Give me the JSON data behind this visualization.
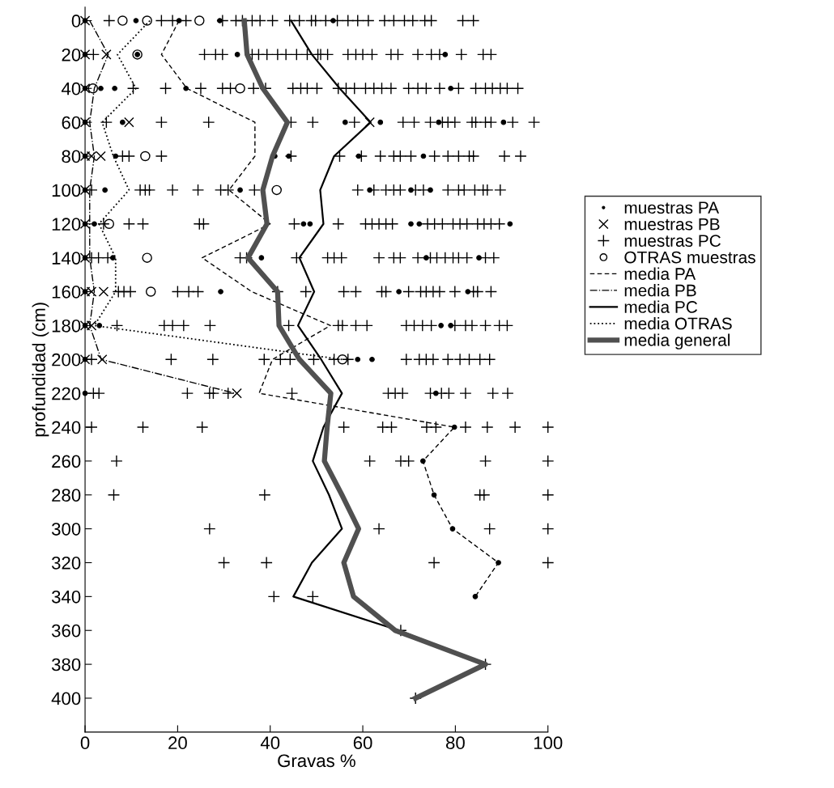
{
  "chart_data": {
    "type": "scatter",
    "xlabel": "Gravas %",
    "ylabel": "profundidad (cm)",
    "xlim": [
      0,
      100
    ],
    "ylim": [
      420,
      -8
    ],
    "xticks": [
      0,
      20,
      40,
      60,
      80,
      100
    ],
    "yticks": [
      0,
      20,
      40,
      60,
      80,
      100,
      120,
      140,
      160,
      180,
      200,
      220,
      240,
      260,
      280,
      300,
      320,
      340,
      360,
      380,
      400
    ],
    "grid": false,
    "legend": "right",
    "series": [
      {
        "name": "muestras PA",
        "marker": "dot",
        "color": "#000000",
        "x": [
          0,
          11,
          20.3,
          29.1,
          53.6,
          0,
          11.3,
          32.9,
          77.8,
          0,
          3.4,
          6.4,
          21.8,
          79,
          0,
          8.1,
          56.2,
          63.8,
          76.4,
          90.4,
          0,
          6.6,
          41,
          44,
          59.1,
          73.1,
          0,
          4.3,
          33.5,
          61.5,
          70.4,
          74.6,
          0,
          2,
          47.2,
          48.6,
          70.4,
          72.2,
          91.8,
          0,
          6,
          38.1,
          73.7,
          85.1,
          0,
          29.3,
          67.8,
          82.7,
          0,
          3.1,
          76.9,
          79,
          0,
          58.9,
          62,
          0,
          75.8,
          79.8,
          73,
          75.4,
          79.4,
          89.3,
          84.3
        ],
        "values": [
          0,
          0,
          0,
          0,
          0,
          20,
          20,
          20,
          20,
          40,
          40,
          40,
          40,
          40,
          60,
          60,
          60,
          60,
          60,
          60,
          80,
          80,
          80,
          80,
          80,
          80,
          100,
          100,
          100,
          100,
          100,
          100,
          120,
          120,
          120,
          120,
          120,
          120,
          120,
          140,
          140,
          140,
          140,
          140,
          160,
          160,
          160,
          160,
          180,
          180,
          180,
          180,
          200,
          200,
          200,
          220,
          220,
          240,
          260,
          280,
          300,
          320,
          340
        ]
      },
      {
        "name": "muestras PB",
        "marker": "x",
        "color": "#000000",
        "x": [
          0,
          0,
          4.6,
          0,
          0,
          9.5,
          61.5,
          0,
          1.4,
          3.4,
          0,
          0,
          0,
          0,
          1.4,
          4,
          0,
          1.4,
          0,
          3.7,
          32.8
        ],
        "values": [
          0,
          20,
          20,
          40,
          60,
          60,
          60,
          80,
          80,
          80,
          100,
          120,
          140,
          160,
          160,
          160,
          180,
          180,
          200,
          200,
          220
        ]
      },
      {
        "name": "muestras PC",
        "marker": "plus",
        "color": "#000000",
        "x": [
          5.2,
          16.5,
          18.9,
          21.8,
          29.7,
          32.6,
          34,
          36.1,
          37.8,
          40.5,
          44.2,
          46.3,
          48.9,
          49.8,
          52,
          54.5,
          56.8,
          58.9,
          61.2,
          64.7,
          66.7,
          69,
          70.8,
          73.4,
          74.8,
          81.6,
          83.9,
          1.8,
          25.8,
          28.2,
          29.7,
          36.1,
          37.5,
          39.3,
          41.6,
          43.4,
          45.7,
          48,
          50.3,
          50.9,
          52.4,
          56.8,
          58.5,
          60,
          62,
          66.1,
          67.6,
          71.9,
          74.8,
          76.6,
          81.3,
          86,
          87.7,
          10.4,
          17.4,
          25,
          29.7,
          31.4,
          36.4,
          39,
          44.9,
          46.6,
          48,
          50.1,
          54.7,
          56.4,
          58.2,
          60.6,
          62.4,
          64.1,
          66.1,
          69.9,
          71.9,
          73.7,
          76.6,
          80.7,
          84.4,
          86.5,
          88,
          89.7,
          91.2,
          93.5,
          4.6,
          16.5,
          26.7,
          44.5,
          49.2,
          58.2,
          68.7,
          71.1,
          74.6,
          77.2,
          78.4,
          79.9,
          83.6,
          84.4,
          86.5,
          87.7,
          92.4,
          97,
          8.1,
          9.5,
          16.5,
          44.5,
          55,
          59.7,
          63.8,
          66.7,
          68.1,
          70.4,
          75.5,
          78.4,
          80.7,
          83,
          83.9,
          90.6,
          94.1,
          1.4,
          11.9,
          13,
          13.9,
          18.9,
          24.4,
          29.3,
          30.9,
          36.6,
          58.9,
          62.4,
          65,
          66.7,
          68.1,
          71.4,
          73.1,
          78.4,
          80.7,
          81.9,
          84.2,
          86,
          86.9,
          89.7,
          4,
          9.5,
          12.5,
          24.7,
          25.6,
          45.2,
          54.7,
          60.6,
          62,
          63.5,
          65,
          66.4,
          74,
          75.5,
          77.2,
          79.5,
          81,
          82.5,
          84.8,
          86.2,
          87.7,
          89.5,
          1.4,
          2.9,
          4.9,
          33.5,
          34.9,
          45.7,
          52.4,
          53.8,
          55.4,
          63.5,
          66.7,
          68.1,
          71.9,
          74.6,
          76,
          77.8,
          79.5,
          80.7,
          82.5,
          86.5,
          88.3,
          7.2,
          8.4,
          9.8,
          20,
          22.4,
          24.4,
          41.6,
          47.7,
          55.9,
          58.5,
          64.1,
          65,
          69.9,
          72.5,
          73.7,
          75.2,
          76.6,
          79.9,
          83.9,
          84.8,
          87.7,
          6.9,
          17.1,
          18.9,
          21.3,
          27,
          44,
          54.7,
          55.6,
          58.5,
          60.9,
          69.4,
          71.1,
          72.9,
          74.8,
          79.9,
          82.2,
          83.6,
          86.5,
          89.5,
          91.2,
          1.4,
          18.6,
          27.6,
          38.7,
          42.2,
          44.3,
          49.4,
          53.8,
          56.8,
          69.4,
          72.2,
          73.7,
          75.2,
          78.4,
          81,
          83,
          85.3,
          87.4,
          1.8,
          3,
          22.1,
          26.9,
          27.7,
          30.9,
          44.7,
          65.5,
          67,
          68.6,
          74.6,
          77,
          78.6,
          82.2,
          88.1,
          91.3,
          1.4,
          12.5,
          25.3,
          55.9,
          64.3,
          66.2,
          73.8,
          75.8,
          82.2,
          86.9,
          92.9,
          100,
          6.8,
          61.5,
          68.2,
          69.9,
          86.5,
          100,
          6.2,
          38.8,
          85.3,
          86.2,
          100,
          26.9,
          63.5,
          87.4,
          100,
          30,
          39.2,
          75.4,
          100,
          40.8,
          49.2,
          68.2,
          86.5,
          71.4
        ],
        "values": [
          0,
          0,
          0,
          0,
          0,
          0,
          0,
          0,
          0,
          0,
          0,
          0,
          0,
          0,
          0,
          0,
          0,
          0,
          0,
          0,
          0,
          0,
          0,
          0,
          0,
          0,
          0,
          20,
          20,
          20,
          20,
          20,
          20,
          20,
          20,
          20,
          20,
          20,
          20,
          20,
          20,
          20,
          20,
          20,
          20,
          20,
          20,
          20,
          20,
          20,
          20,
          20,
          20,
          40,
          40,
          40,
          40,
          40,
          40,
          40,
          40,
          40,
          40,
          40,
          40,
          40,
          40,
          40,
          40,
          40,
          40,
          40,
          40,
          40,
          40,
          40,
          40,
          40,
          40,
          40,
          40,
          40,
          60,
          60,
          60,
          60,
          60,
          60,
          60,
          60,
          60,
          60,
          60,
          60,
          60,
          60,
          60,
          60,
          60,
          60,
          80,
          80,
          80,
          80,
          80,
          80,
          80,
          80,
          80,
          80,
          80,
          80,
          80,
          80,
          80,
          80,
          80,
          100,
          100,
          100,
          100,
          100,
          100,
          100,
          100,
          100,
          100,
          100,
          100,
          100,
          100,
          100,
          100,
          100,
          100,
          100,
          100,
          100,
          100,
          100,
          120,
          120,
          120,
          120,
          120,
          120,
          120,
          120,
          120,
          120,
          120,
          120,
          120,
          120,
          120,
          120,
          120,
          120,
          120,
          120,
          120,
          120,
          140,
          140,
          140,
          140,
          140,
          140,
          140,
          140,
          140,
          140,
          140,
          140,
          140,
          140,
          140,
          140,
          140,
          140,
          140,
          140,
          140,
          160,
          160,
          160,
          160,
          160,
          160,
          160,
          160,
          160,
          160,
          160,
          160,
          160,
          160,
          160,
          160,
          160,
          160,
          160,
          160,
          160,
          180,
          180,
          180,
          180,
          180,
          180,
          180,
          180,
          180,
          180,
          180,
          180,
          180,
          180,
          180,
          180,
          180,
          180,
          180,
          180,
          200,
          200,
          200,
          200,
          200,
          200,
          200,
          200,
          200,
          200,
          200,
          200,
          200,
          200,
          200,
          200,
          200,
          200,
          220,
          220,
          220,
          220,
          220,
          220,
          220,
          220,
          220,
          220,
          220,
          220,
          220,
          220,
          220,
          220,
          240,
          240,
          240,
          240,
          240,
          240,
          240,
          240,
          240,
          240,
          240,
          240,
          260,
          260,
          260,
          260,
          260,
          260,
          280,
          280,
          280,
          280,
          280,
          300,
          300,
          300,
          300,
          320,
          320,
          320,
          320,
          340,
          340,
          360,
          380,
          400
        ]
      },
      {
        "name": "OTRAS muestras",
        "marker": "circle",
        "color": "#000000",
        "x": [
          8.1,
          13.4,
          24.7,
          11.3,
          1.7,
          33.5,
          13,
          41.4,
          5.2,
          13.4,
          14.2,
          55.6
        ],
        "values": [
          0,
          0,
          0,
          20,
          40,
          40,
          80,
          100,
          120,
          140,
          160,
          200
        ]
      },
      {
        "name": "media PA",
        "type": "line",
        "line_style": "dashed",
        "color": "#000000",
        "x": [
          20.3,
          16.5,
          22,
          36.7,
          36.7,
          31.1,
          40,
          25.3,
          36,
          53,
          40.5,
          37.6,
          79.8,
          73,
          75.4,
          79.4,
          89.3,
          84.3
        ],
        "values": [
          0,
          20,
          40,
          60,
          80,
          100,
          120,
          140,
          160,
          180,
          200,
          220,
          240,
          260,
          280,
          300,
          320,
          340
        ]
      },
      {
        "name": "media PB",
        "type": "line",
        "line_style": "dashdot",
        "color": "#000000",
        "x": [
          1,
          5,
          2,
          1,
          2,
          1,
          1,
          1,
          2,
          1,
          3.5,
          32.4
        ],
        "values": [
          0,
          20,
          40,
          60,
          80,
          100,
          120,
          140,
          160,
          180,
          200,
          220
        ]
      },
      {
        "name": "media PC",
        "type": "line",
        "line_style": "solid",
        "color": "#000000",
        "x": [
          44.5,
          49,
          55,
          61.7,
          53.8,
          50.8,
          51.5,
          46.3,
          49.5,
          46,
          51,
          55.5,
          51.5,
          49.2,
          52.7,
          55.5,
          49,
          45,
          67.8,
          86.5,
          71.4
        ],
        "values": [
          0,
          20,
          40,
          60,
          80,
          100,
          120,
          140,
          160,
          180,
          200,
          220,
          240,
          260,
          280,
          300,
          320,
          340,
          360,
          380,
          400
        ]
      },
      {
        "name": "media OTRAS",
        "type": "line",
        "line_style": "dotted",
        "color": "#000000",
        "x": [
          14,
          7,
          11,
          3.7,
          6.1,
          9.5,
          3,
          6.6,
          6.6,
          2,
          55.5
        ],
        "values": [
          0,
          20,
          40,
          60,
          80,
          100,
          120,
          140,
          160,
          180,
          200
        ]
      },
      {
        "name": "media general",
        "type": "line",
        "line_style": "solid",
        "color": "#505050",
        "x": [
          34.4,
          35,
          38.4,
          43.7,
          40.5,
          38.4,
          39.3,
          35.2,
          41.6,
          41.9,
          46.3,
          53.1,
          52.3,
          51.7,
          55.5,
          59.1,
          55.9,
          58,
          67,
          86.5,
          71.4
        ],
        "values": [
          0,
          20,
          40,
          60,
          80,
          100,
          120,
          140,
          160,
          180,
          200,
          220,
          240,
          260,
          280,
          300,
          320,
          340,
          360,
          380,
          400
        ]
      }
    ]
  }
}
